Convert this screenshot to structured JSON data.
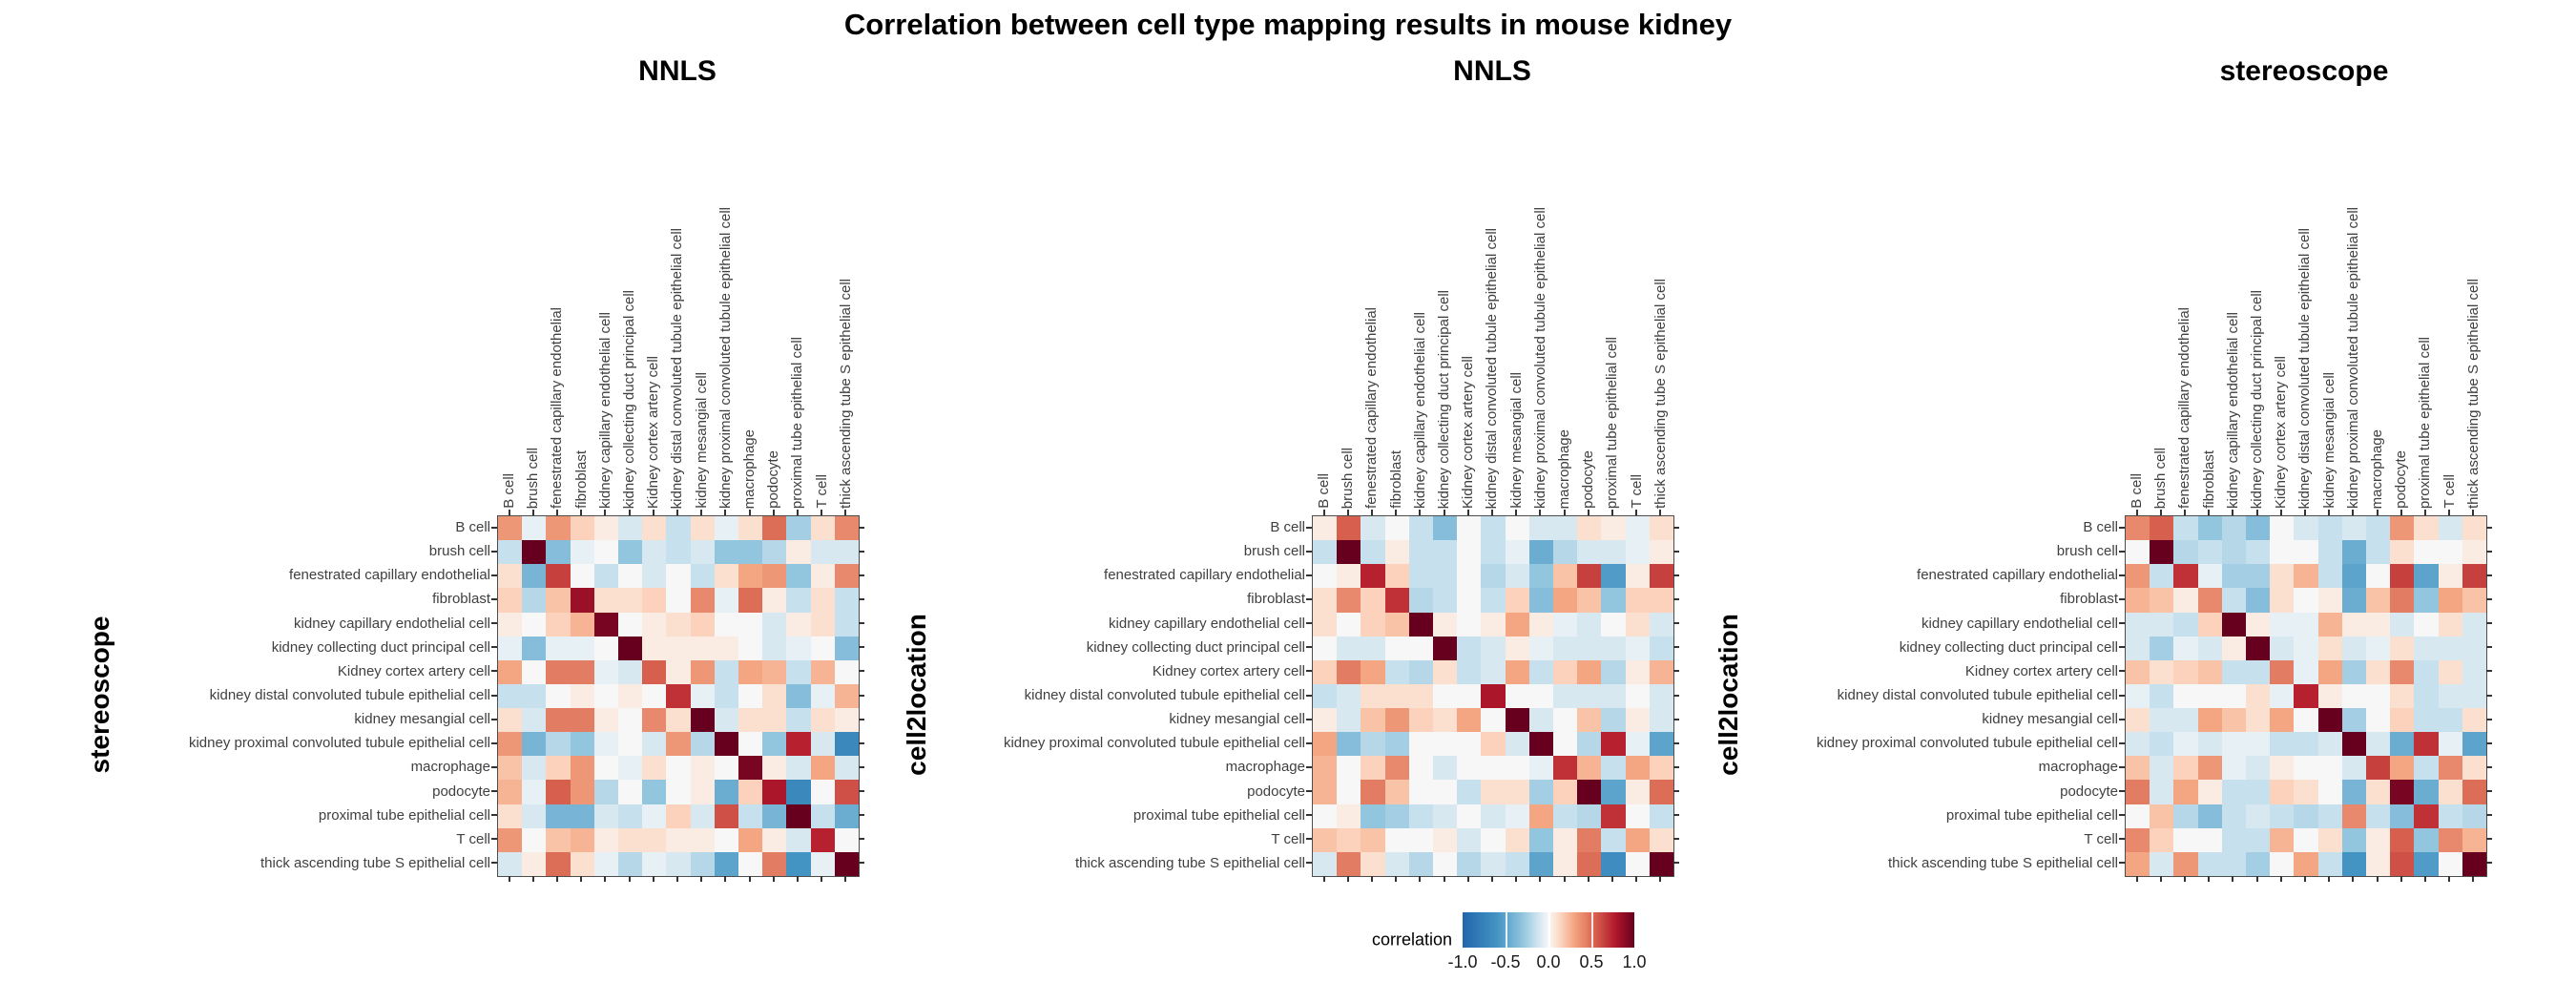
{
  "title": "Correlation between cell type mapping results in mouse kidney",
  "cell_types": [
    "B cell",
    "brush cell",
    "fenestrated capillary endothelial",
    "fibroblast",
    "kidney capillary endothelial cell",
    "kidney collecting duct principal cell",
    "Kidney cortex artery cell",
    "kidney distal convoluted tubule epithelial cell",
    "kidney mesangial cell",
    "kidney proximal convoluted tubule epithelial cell",
    "macrophage",
    "podocyte",
    "proximal tube epithelial cell",
    "T cell",
    "thick ascending tube S epithelial cell"
  ],
  "legend": {
    "title": "correlation",
    "ticks": [
      "-1.0",
      "-0.5",
      "0.0",
      "0.5",
      "1.0"
    ],
    "range": [
      -1,
      1
    ]
  },
  "colormap": {
    "anchors": [
      [
        -1.0,
        "#2166ac"
      ],
      [
        -0.6,
        "#4393c3"
      ],
      [
        -0.3,
        "#92c5de"
      ],
      [
        -0.12,
        "#d1e5f0"
      ],
      [
        0.0,
        "#f7f7f7"
      ],
      [
        0.12,
        "#fddbc7"
      ],
      [
        0.3,
        "#f4a582"
      ],
      [
        0.55,
        "#d6604d"
      ],
      [
        0.78,
        "#b2182b"
      ],
      [
        1.0,
        "#67001f"
      ]
    ]
  },
  "chart_data": [
    {
      "type": "heatmap",
      "title": "NNLS",
      "xlabel": "NNLS",
      "ylabel": "stereoscope",
      "values": [
        [
          0.35,
          -0.05,
          0.35,
          0.15,
          0.05,
          -0.1,
          0.1,
          -0.15,
          0.1,
          -0.05,
          0.1,
          0.5,
          -0.25,
          0.1,
          0.4
        ],
        [
          -0.15,
          1.0,
          -0.35,
          -0.05,
          0.0,
          -0.3,
          -0.1,
          -0.15,
          -0.1,
          -0.3,
          -0.3,
          -0.2,
          0.05,
          -0.1,
          -0.1
        ],
        [
          0.1,
          -0.4,
          0.65,
          0.0,
          -0.15,
          0.0,
          -0.1,
          0.0,
          -0.15,
          0.1,
          0.3,
          0.35,
          -0.3,
          0.05,
          0.4
        ],
        [
          0.15,
          -0.2,
          0.2,
          0.85,
          0.1,
          0.1,
          0.15,
          0.0,
          0.4,
          -0.05,
          0.5,
          0.05,
          -0.15,
          0.1,
          -0.15
        ],
        [
          0.05,
          0.0,
          0.15,
          0.25,
          0.95,
          0.0,
          0.05,
          0.1,
          0.15,
          0.0,
          0.0,
          -0.1,
          0.05,
          0.1,
          -0.15
        ],
        [
          -0.05,
          -0.35,
          -0.05,
          -0.05,
          0.0,
          1.0,
          0.05,
          0.05,
          0.05,
          0.05,
          0.0,
          -0.1,
          -0.05,
          0.0,
          -0.35
        ],
        [
          0.3,
          0.0,
          0.45,
          0.45,
          -0.05,
          -0.1,
          0.55,
          0.05,
          0.35,
          -0.15,
          0.3,
          0.25,
          -0.15,
          0.25,
          0.0
        ],
        [
          -0.15,
          -0.15,
          0.0,
          0.05,
          0.0,
          0.05,
          0.0,
          0.7,
          -0.05,
          -0.15,
          0.0,
          0.1,
          -0.35,
          -0.05,
          0.25
        ],
        [
          0.1,
          -0.1,
          0.45,
          0.45,
          0.05,
          0.0,
          0.4,
          0.1,
          1.0,
          -0.1,
          0.1,
          0.1,
          -0.15,
          0.1,
          0.05
        ],
        [
          0.35,
          -0.4,
          -0.2,
          -0.3,
          -0.05,
          0.0,
          -0.1,
          0.35,
          -0.2,
          1.0,
          0.0,
          -0.3,
          0.75,
          -0.1,
          -0.7
        ],
        [
          0.2,
          -0.1,
          0.15,
          0.35,
          0.0,
          -0.05,
          0.1,
          0.0,
          0.05,
          0.0,
          0.95,
          0.05,
          -0.1,
          0.3,
          -0.1
        ],
        [
          0.25,
          -0.05,
          0.55,
          0.35,
          -0.2,
          0.0,
          -0.3,
          0.0,
          0.05,
          -0.45,
          0.15,
          0.8,
          -0.7,
          0.0,
          0.6
        ],
        [
          0.1,
          -0.1,
          -0.4,
          -0.4,
          -0.1,
          -0.15,
          -0.05,
          0.15,
          -0.1,
          0.6,
          -0.15,
          -0.4,
          1.0,
          -0.15,
          -0.45
        ],
        [
          0.35,
          0.0,
          0.2,
          0.25,
          0.05,
          0.1,
          0.1,
          0.05,
          0.05,
          0.0,
          0.3,
          0.05,
          -0.1,
          0.75,
          0.0
        ],
        [
          -0.1,
          0.05,
          0.5,
          0.1,
          -0.05,
          -0.2,
          -0.05,
          -0.1,
          -0.2,
          -0.5,
          0.0,
          0.45,
          -0.6,
          -0.05,
          1.0
        ]
      ]
    },
    {
      "type": "heatmap",
      "title": "NNLS",
      "xlabel": "NNLS",
      "ylabel": "cell2location",
      "values": [
        [
          0.05,
          0.55,
          -0.1,
          0.0,
          -0.15,
          -0.35,
          0.0,
          -0.15,
          0.0,
          -0.1,
          -0.1,
          0.1,
          0.05,
          -0.05,
          0.1
        ],
        [
          -0.15,
          1.0,
          -0.15,
          0.05,
          -0.15,
          -0.15,
          0.0,
          -0.15,
          -0.05,
          -0.45,
          -0.2,
          -0.1,
          -0.1,
          -0.05,
          0.05
        ],
        [
          0.0,
          0.05,
          0.75,
          0.15,
          -0.15,
          -0.15,
          0.0,
          -0.2,
          -0.1,
          -0.3,
          0.2,
          0.65,
          -0.55,
          0.05,
          0.65
        ],
        [
          0.1,
          0.4,
          0.15,
          0.7,
          -0.2,
          -0.15,
          0.0,
          -0.15,
          0.15,
          -0.35,
          0.3,
          0.2,
          -0.3,
          0.15,
          0.15
        ],
        [
          0.1,
          0.0,
          0.15,
          0.2,
          1.0,
          0.05,
          0.0,
          0.05,
          0.3,
          0.05,
          -0.05,
          -0.1,
          0.0,
          0.1,
          -0.1
        ],
        [
          0.0,
          -0.1,
          -0.1,
          0.0,
          0.0,
          1.0,
          -0.15,
          -0.1,
          0.05,
          -0.05,
          -0.1,
          -0.1,
          -0.1,
          -0.05,
          -0.15
        ],
        [
          0.15,
          0.45,
          0.3,
          -0.15,
          -0.2,
          0.1,
          -0.15,
          -0.1,
          0.3,
          -0.15,
          0.15,
          0.3,
          -0.2,
          0.05,
          0.25
        ],
        [
          -0.15,
          -0.1,
          0.1,
          0.1,
          0.1,
          0.0,
          0.0,
          0.8,
          0.0,
          0.0,
          -0.1,
          -0.1,
          -0.1,
          0.0,
          -0.1
        ],
        [
          0.05,
          -0.1,
          0.2,
          0.35,
          0.15,
          0.1,
          0.3,
          0.0,
          1.0,
          -0.1,
          0.0,
          0.2,
          -0.2,
          0.05,
          -0.1
        ],
        [
          0.3,
          -0.35,
          -0.2,
          -0.25,
          0.0,
          0.0,
          0.0,
          0.15,
          -0.1,
          1.0,
          0.0,
          -0.2,
          0.75,
          -0.05,
          -0.5
        ],
        [
          0.25,
          0.0,
          0.15,
          0.4,
          0.0,
          -0.1,
          0.0,
          0.0,
          0.0,
          -0.05,
          0.7,
          0.25,
          -0.15,
          0.3,
          0.15
        ],
        [
          0.25,
          0.0,
          0.45,
          0.2,
          0.0,
          0.0,
          -0.15,
          0.1,
          0.1,
          -0.25,
          0.15,
          1.0,
          -0.5,
          0.05,
          0.5
        ],
        [
          0.0,
          0.05,
          -0.3,
          -0.25,
          -0.15,
          -0.1,
          0.0,
          -0.1,
          -0.05,
          0.3,
          -0.15,
          -0.2,
          0.7,
          0.0,
          -0.15
        ],
        [
          0.2,
          0.15,
          0.2,
          0.0,
          0.0,
          0.05,
          -0.1,
          0.0,
          0.1,
          -0.3,
          0.05,
          0.45,
          -0.15,
          0.3,
          0.1
        ],
        [
          -0.1,
          0.45,
          0.1,
          -0.1,
          -0.2,
          0.0,
          -0.2,
          -0.1,
          -0.15,
          -0.5,
          0.05,
          0.5,
          -0.65,
          0.0,
          1.0
        ]
      ]
    },
    {
      "type": "heatmap",
      "title": "stereoscope",
      "xlabel": "stereoscope",
      "ylabel": "cell2location",
      "values": [
        [
          0.4,
          0.55,
          -0.15,
          -0.3,
          -0.2,
          -0.35,
          0.0,
          -0.1,
          -0.15,
          -0.1,
          -0.15,
          0.35,
          0.1,
          -0.1,
          0.1
        ],
        [
          0.0,
          1.0,
          -0.2,
          -0.15,
          -0.2,
          -0.15,
          0.0,
          0.0,
          -0.15,
          -0.45,
          -0.15,
          0.1,
          0.0,
          0.0,
          0.05
        ],
        [
          0.35,
          -0.15,
          0.7,
          -0.05,
          -0.25,
          -0.25,
          0.1,
          0.25,
          -0.15,
          -0.5,
          0.0,
          0.65,
          -0.5,
          0.05,
          0.65
        ],
        [
          0.25,
          0.2,
          0.05,
          0.4,
          -0.15,
          -0.35,
          0.1,
          0.0,
          0.05,
          -0.45,
          0.2,
          0.45,
          -0.3,
          0.3,
          0.2
        ],
        [
          -0.1,
          -0.1,
          -0.15,
          0.15,
          1.0,
          0.05,
          -0.05,
          -0.05,
          0.25,
          0.05,
          0.05,
          -0.1,
          0.0,
          0.1,
          -0.1
        ],
        [
          -0.1,
          -0.25,
          -0.05,
          -0.1,
          0.05,
          1.0,
          -0.1,
          -0.05,
          0.1,
          -0.1,
          -0.05,
          0.1,
          -0.1,
          -0.1,
          -0.1
        ],
        [
          0.2,
          0.1,
          0.15,
          0.2,
          -0.15,
          -0.15,
          0.45,
          -0.05,
          0.3,
          -0.25,
          0.1,
          0.4,
          -0.15,
          0.1,
          -0.1
        ],
        [
          -0.05,
          -0.15,
          0.0,
          0.0,
          0.0,
          0.1,
          -0.05,
          0.75,
          0.05,
          0.0,
          0.0,
          0.1,
          -0.15,
          -0.1,
          -0.1
        ],
        [
          0.1,
          -0.1,
          -0.1,
          0.3,
          0.2,
          0.1,
          0.3,
          0.0,
          1.0,
          -0.25,
          0.0,
          0.15,
          -0.15,
          -0.15,
          0.1
        ],
        [
          -0.1,
          -0.15,
          -0.05,
          -0.1,
          -0.05,
          -0.05,
          -0.15,
          -0.15,
          -0.1,
          1.0,
          -0.1,
          -0.45,
          0.7,
          -0.05,
          -0.5
        ],
        [
          0.2,
          -0.1,
          0.15,
          0.35,
          -0.05,
          -0.1,
          0.05,
          0.0,
          0.0,
          -0.1,
          0.65,
          0.3,
          -0.15,
          0.4,
          0.1
        ],
        [
          0.45,
          -0.1,
          0.3,
          0.05,
          -0.15,
          -0.15,
          0.15,
          0.1,
          0.0,
          -0.4,
          0.1,
          0.95,
          -0.45,
          0.1,
          0.5
        ],
        [
          0.0,
          0.2,
          -0.2,
          -0.35,
          -0.15,
          -0.1,
          -0.15,
          -0.2,
          -0.15,
          0.4,
          -0.15,
          -0.35,
          0.7,
          -0.15,
          -0.2
        ],
        [
          0.4,
          0.15,
          0.0,
          0.0,
          -0.15,
          -0.15,
          0.25,
          0.0,
          0.1,
          -0.3,
          0.05,
          0.55,
          -0.3,
          0.4,
          0.25
        ],
        [
          0.3,
          -0.1,
          0.35,
          -0.15,
          -0.15,
          -0.25,
          0.0,
          0.3,
          -0.15,
          -0.6,
          0.05,
          0.6,
          -0.55,
          0.0,
          1.0
        ]
      ]
    }
  ]
}
